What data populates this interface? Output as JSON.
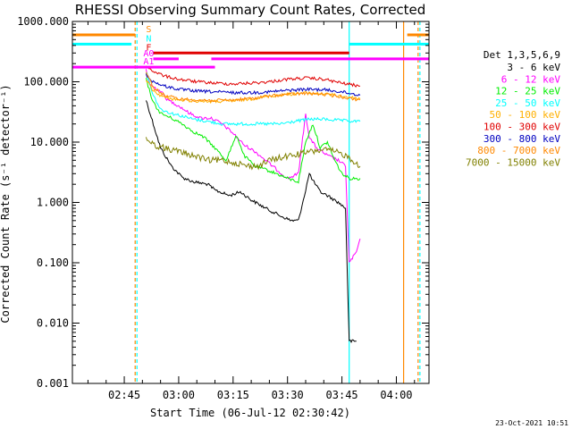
{
  "chart_data": {
    "type": "line",
    "title": "RHESSI Observing Summary Count Rates, Corrected",
    "xlabel": "Start Time (06-Jul-12 02:30:42)",
    "ylabel": "Corrected Count Rate (s⁻¹ detector⁻¹)",
    "yscale": "log",
    "ylim": [
      0.001,
      1000
    ],
    "y_tick_labels": [
      "1000.000",
      "100.000",
      "10.000",
      "1.000",
      "0.100",
      "0.010",
      "0.001"
    ],
    "xlim": [
      "02:30:42",
      "04:09"
    ],
    "x_tick_labels": [
      "02:45",
      "03:00",
      "03:15",
      "03:30",
      "03:45",
      "04:00"
    ],
    "legend_title": "Det 1,3,5,6,9",
    "legend_position": "right",
    "series": [
      {
        "name": "3 - 6 keV",
        "color": "#000000",
        "points": [
          [
            "02:51:00",
            50
          ],
          [
            "02:53:00",
            20
          ],
          [
            "02:55:00",
            8
          ],
          [
            "02:58:00",
            4
          ],
          [
            "03:01:00",
            2.6
          ],
          [
            "03:04:00",
            2.2
          ],
          [
            "03:08:00",
            2.0
          ],
          [
            "03:10:00",
            1.6
          ],
          [
            "03:14:00",
            1.3
          ],
          [
            "03:17:00",
            1.5
          ],
          [
            "03:20:00",
            1.1
          ],
          [
            "03:24:00",
            0.8
          ],
          [
            "03:28:00",
            0.6
          ],
          [
            "03:31:00",
            0.5
          ],
          [
            "03:33:00",
            0.5
          ],
          [
            "03:34:00",
            0.9
          ],
          [
            "03:35:00",
            1.6
          ],
          [
            "03:36:00",
            3.0
          ],
          [
            "03:37:00",
            2.3
          ],
          [
            "03:39:00",
            1.5
          ],
          [
            "03:41:00",
            1.3
          ],
          [
            "03:44:00",
            1.0
          ],
          [
            "03:46:00",
            0.8
          ],
          [
            "03:47:00",
            0.005
          ],
          [
            "03:49:00",
            0.005
          ]
        ]
      },
      {
        "name": "6 - 12 keV",
        "color": "#ff00ff",
        "points": [
          [
            "02:51:00",
            160
          ],
          [
            "02:52:00",
            90
          ],
          [
            "02:55:00",
            70
          ],
          [
            "02:57:00",
            50
          ],
          [
            "03:00:00",
            40
          ],
          [
            "03:03:00",
            30
          ],
          [
            "03:06:00",
            25
          ],
          [
            "03:09:00",
            25
          ],
          [
            "03:12:00",
            20
          ],
          [
            "03:15:00",
            14
          ],
          [
            "03:18:00",
            9
          ],
          [
            "03:21:00",
            7
          ],
          [
            "03:24:00",
            5
          ],
          [
            "03:27:00",
            3.5
          ],
          [
            "03:30:00",
            2.5
          ],
          [
            "03:33:00",
            3.0
          ],
          [
            "03:35:00",
            30
          ],
          [
            "03:36:00",
            12
          ],
          [
            "03:38:00",
            8
          ],
          [
            "03:41:00",
            6
          ],
          [
            "03:44:00",
            5
          ],
          [
            "03:46:00",
            4
          ],
          [
            "03:47:00",
            0.1
          ],
          [
            "03:49:00",
            0.15
          ],
          [
            "03:50:00",
            0.25
          ]
        ]
      },
      {
        "name": "12 - 25 keV",
        "color": "#00ee00",
        "points": [
          [
            "02:51:00",
            110
          ],
          [
            "02:53:00",
            45
          ],
          [
            "02:55:00",
            30
          ],
          [
            "02:58:00",
            25
          ],
          [
            "03:01:00",
            20
          ],
          [
            "03:04:00",
            15
          ],
          [
            "03:07:00",
            12
          ],
          [
            "03:10:00",
            8
          ],
          [
            "03:13:00",
            5
          ],
          [
            "03:16:00",
            13
          ],
          [
            "03:18:00",
            6
          ],
          [
            "03:21:00",
            4
          ],
          [
            "03:24:00",
            3.5
          ],
          [
            "03:27:00",
            3.0
          ],
          [
            "03:30:00",
            2.5
          ],
          [
            "03:33:00",
            2.2
          ],
          [
            "03:35:00",
            10
          ],
          [
            "03:37:00",
            20
          ],
          [
            "03:39:00",
            8
          ],
          [
            "03:41:00",
            10
          ],
          [
            "03:43:00",
            5
          ],
          [
            "03:45:00",
            3
          ],
          [
            "03:47:00",
            2.5
          ],
          [
            "03:50:00",
            2.5
          ]
        ]
      },
      {
        "name": "25 - 50 keV",
        "color": "#00ffff",
        "points": [
          [
            "02:51:00",
            150
          ],
          [
            "02:53:00",
            60
          ],
          [
            "02:55:00",
            35
          ],
          [
            "02:58:00",
            30
          ],
          [
            "03:01:00",
            27
          ],
          [
            "03:04:00",
            24
          ],
          [
            "03:08:00",
            22
          ],
          [
            "03:12:00",
            20
          ],
          [
            "03:16:00",
            20
          ],
          [
            "03:20:00",
            20
          ],
          [
            "03:24:00",
            20
          ],
          [
            "03:28:00",
            20
          ],
          [
            "03:32:00",
            22
          ],
          [
            "03:36:00",
            24
          ],
          [
            "03:40:00",
            24
          ],
          [
            "03:44:00",
            23
          ],
          [
            "03:48:00",
            22
          ],
          [
            "03:50:00",
            22
          ]
        ]
      },
      {
        "name": "50 - 100 keV",
        "color": "#ffb000",
        "points": [
          [
            "02:51:00",
            110
          ],
          [
            "02:53:00",
            70
          ],
          [
            "02:56:00",
            55
          ],
          [
            "03:00:00",
            50
          ],
          [
            "03:05:00",
            48
          ],
          [
            "03:10:00",
            47
          ],
          [
            "03:15:00",
            48
          ],
          [
            "03:20:00",
            52
          ],
          [
            "03:25:00",
            58
          ],
          [
            "03:30:00",
            62
          ],
          [
            "03:35:00",
            65
          ],
          [
            "03:40:00",
            63
          ],
          [
            "03:45:00",
            58
          ],
          [
            "03:50:00",
            52
          ]
        ]
      },
      {
        "name": "100 - 300 keV",
        "color": "#e00000",
        "points": [
          [
            "02:51:00",
            180
          ],
          [
            "02:53:00",
            150
          ],
          [
            "02:56:00",
            125
          ],
          [
            "03:00:00",
            110
          ],
          [
            "03:05:00",
            100
          ],
          [
            "03:10:00",
            95
          ],
          [
            "03:15:00",
            92
          ],
          [
            "03:20:00",
            95
          ],
          [
            "03:25:00",
            100
          ],
          [
            "03:30:00",
            110
          ],
          [
            "03:35:00",
            115
          ],
          [
            "03:40:00",
            110
          ],
          [
            "03:45:00",
            95
          ],
          [
            "03:50:00",
            85
          ]
        ]
      },
      {
        "name": "300 - 800 keV",
        "color": "#0000c0",
        "points": [
          [
            "02:51:00",
            130
          ],
          [
            "02:53:00",
            100
          ],
          [
            "02:56:00",
            85
          ],
          [
            "03:00:00",
            75
          ],
          [
            "03:05:00",
            70
          ],
          [
            "03:10:00",
            68
          ],
          [
            "03:15:00",
            66
          ],
          [
            "03:20:00",
            66
          ],
          [
            "03:25:00",
            68
          ],
          [
            "03:30:00",
            72
          ],
          [
            "03:35:00",
            75
          ],
          [
            "03:40:00",
            74
          ],
          [
            "03:45:00",
            68
          ],
          [
            "03:50:00",
            60
          ]
        ]
      },
      {
        "name": "800 - 7000 keV",
        "color": "#ff8800",
        "points": [
          [
            "02:51:00",
            150
          ],
          [
            "02:53:00",
            80
          ],
          [
            "02:56:00",
            60
          ],
          [
            "03:00:00",
            52
          ],
          [
            "03:05:00",
            50
          ],
          [
            "03:10:00",
            49
          ],
          [
            "03:15:00",
            50
          ],
          [
            "03:20:00",
            53
          ],
          [
            "03:25:00",
            58
          ],
          [
            "03:30:00",
            62
          ],
          [
            "03:35:00",
            64
          ],
          [
            "03:40:00",
            62
          ],
          [
            "03:45:00",
            56
          ],
          [
            "03:50:00",
            50
          ]
        ]
      },
      {
        "name": "7000 - 15000 keV",
        "color": "#808000",
        "points": [
          [
            "02:51:00",
            12
          ],
          [
            "02:53:00",
            9
          ],
          [
            "02:56:00",
            8
          ],
          [
            "03:00:00",
            7
          ],
          [
            "03:04:00",
            6
          ],
          [
            "03:08:00",
            5
          ],
          [
            "03:12:00",
            5
          ],
          [
            "03:16:00",
            4.5
          ],
          [
            "03:19:00",
            4
          ],
          [
            "03:22:00",
            4
          ],
          [
            "03:25:00",
            5
          ],
          [
            "03:28:00",
            5.5
          ],
          [
            "03:31:00",
            6
          ],
          [
            "03:34:00",
            6.5
          ],
          [
            "03:37:00",
            7
          ],
          [
            "03:40:00",
            7.5
          ],
          [
            "03:43:00",
            7
          ],
          [
            "03:46:00",
            6
          ],
          [
            "03:48:00",
            5
          ],
          [
            "03:50:00",
            4
          ]
        ]
      }
    ],
    "flag_bars": [
      {
        "label": "S",
        "color": "#ff8800",
        "level": 600,
        "spans": [
          [
            "02:30:42",
            "02:48:00"
          ],
          [
            "04:03:00",
            "04:09:00"
          ]
        ]
      },
      {
        "label": "N",
        "color": "#00ffff",
        "level": 420,
        "spans": [
          [
            "02:30:42",
            "02:47:00"
          ],
          [
            "03:47:00",
            "04:09:00"
          ]
        ]
      },
      {
        "label": "F",
        "color": "#e00000",
        "level": 300,
        "spans": [
          [
            "02:53:00",
            "03:47:00"
          ]
        ]
      },
      {
        "label": "A0",
        "color": "#ff00ff",
        "level": 240,
        "spans": [
          [
            "02:53:00",
            "03:00:00"
          ],
          [
            "03:09:00",
            "04:09:00"
          ]
        ]
      },
      {
        "label": "A1",
        "color": "#ff00ff",
        "level": 175,
        "spans": [
          [
            "02:30:42",
            "03:10:00"
          ]
        ]
      }
    ],
    "vertical_markers": [
      {
        "time": "02:48:00",
        "color": "#ff8800",
        "style": "dashed"
      },
      {
        "time": "02:48:30",
        "color": "#00ffff",
        "style": "dashed"
      },
      {
        "time": "03:47:00",
        "color": "#00ffff",
        "style": "solid"
      },
      {
        "time": "04:02:00",
        "color": "#ff8800",
        "style": "solid"
      },
      {
        "time": "04:06:00",
        "color": "#ff8800",
        "style": "dashed"
      },
      {
        "time": "04:06:30",
        "color": "#00ffff",
        "style": "dashed"
      }
    ]
  },
  "timestamp": "23-Oct-2021 10:51"
}
